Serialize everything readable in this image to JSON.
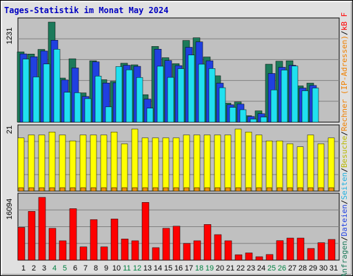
{
  "chart_data": [
    {
      "type": "bar",
      "panel": "top",
      "title": "Tages-Statistik im Monat May 2024",
      "ymax_label": "1231",
      "ylim": [
        0,
        1231
      ],
      "categories": [
        "1",
        "2",
        "3",
        "4",
        "5",
        "6",
        "7",
        "8",
        "9",
        "10",
        "11",
        "12",
        "13",
        "14",
        "15",
        "16",
        "17",
        "18",
        "19",
        "20",
        "21",
        "22",
        "23",
        "24",
        "25",
        "26",
        "27",
        "28",
        "29",
        "30",
        "31"
      ],
      "weekend_days": [
        "4",
        "5",
        "11",
        "12",
        "18",
        "19",
        "25",
        "26"
      ],
      "series": [
        {
          "name": "Anfragen",
          "color": "#1c7a5a",
          "values": [
            865,
            838,
            895,
            1231,
            543,
            780,
            360,
            755,
            522,
            502,
            725,
            705,
            338,
            932,
            793,
            720,
            1005,
            1038,
            802,
            570,
            234,
            249,
            79,
            139,
            713,
            750,
            755,
            446,
            480,
            0,
            0
          ]
        },
        {
          "name": "Dateien",
          "color": "#2040e0",
          "values": [
            840,
            805,
            875,
            1008,
            519,
            667,
            316,
            742,
            482,
            484,
            700,
            687,
            284,
            898,
            758,
            696,
            921,
            988,
            755,
            480,
            214,
            222,
            70,
            104,
            599,
            675,
            700,
            420,
            451,
            0,
            0
          ]
        },
        {
          "name": "Seiten",
          "color": "#20e0f0",
          "values": [
            776,
            556,
            715,
            897,
            368,
            362,
            289,
            567,
            188,
            684,
            644,
            550,
            172,
            688,
            551,
            658,
            826,
            713,
            660,
            424,
            182,
            153,
            38,
            63,
            397,
            641,
            690,
            386,
            420,
            0,
            0
          ]
        }
      ]
    },
    {
      "type": "bar",
      "panel": "middle",
      "ymax_label": "21",
      "ylim": [
        0,
        21
      ],
      "categories": [
        "1",
        "2",
        "3",
        "4",
        "5",
        "6",
        "7",
        "8",
        "9",
        "10",
        "11",
        "12",
        "13",
        "14",
        "15",
        "16",
        "17",
        "18",
        "19",
        "20",
        "21",
        "22",
        "23",
        "24",
        "25",
        "26",
        "27",
        "28",
        "29",
        "30",
        "31"
      ],
      "series": [
        {
          "name": "Besuche",
          "color": "#ffff00",
          "values": [
            18,
            19,
            19,
            20,
            19,
            17,
            19,
            19,
            19,
            20,
            16,
            21,
            18,
            18,
            18,
            18,
            19,
            19,
            19,
            19,
            19,
            21,
            20,
            19,
            17,
            17,
            16,
            15,
            19,
            16,
            18
          ]
        },
        {
          "name": "Rechner (IP-Adressen)",
          "color": "#f09010",
          "values": [
            1,
            1,
            1,
            1,
            1,
            1,
            1,
            1,
            1,
            1,
            1,
            1,
            1,
            1,
            1,
            1,
            1,
            1,
            1,
            1,
            1,
            1,
            1,
            1,
            1,
            1,
            1,
            1,
            1,
            1,
            1
          ]
        }
      ]
    },
    {
      "type": "bar",
      "panel": "bottom",
      "ymax_label": "16094",
      "ylim": [
        0,
        16094
      ],
      "categories": [
        "1",
        "2",
        "3",
        "4",
        "5",
        "6",
        "7",
        "8",
        "9",
        "10",
        "11",
        "12",
        "13",
        "14",
        "15",
        "16",
        "17",
        "18",
        "19",
        "20",
        "21",
        "22",
        "23",
        "24",
        "25",
        "26",
        "27",
        "28",
        "29",
        "30",
        "31"
      ],
      "series": [
        {
          "name": "kB F",
          "color": "#ff0000",
          "values": [
            8400,
            12500,
            16094,
            8160,
            4964,
            13200,
            3400,
            10400,
            3400,
            10560,
            5430,
            4964,
            14800,
            3200,
            8160,
            8700,
            4290,
            4964,
            9150,
            6540,
            4964,
            1390,
            1850,
            880,
            1440,
            5000,
            5660,
            5660,
            3000,
            4480,
            5310
          ]
        }
      ]
    }
  ],
  "legend_right": [
    {
      "text": "Anfragen",
      "color": "#1c7a5a"
    },
    {
      "text": "/",
      "color": "#000000"
    },
    {
      "text": "Dateien",
      "color": "#2040e0"
    },
    {
      "text": "/",
      "color": "#000000"
    },
    {
      "text": "Seiten",
      "color": "#20b0e0"
    },
    {
      "text": "/",
      "color": "#000000"
    },
    {
      "text": "Besuche",
      "color": "#b8b800"
    },
    {
      "text": "/",
      "color": "#000000"
    },
    {
      "text": "Rechner (IP-Adressen)",
      "color": "#f08000"
    },
    {
      "text": "/",
      "color": "#000000"
    },
    {
      "text": "kB F",
      "color": "#ff0000"
    }
  ],
  "colors": {
    "title": "#0000c0",
    "weekend_label": "#008040",
    "weekday_label": "#000000",
    "panel_bg": "#c0c0c0",
    "frame_bg": "#e0e0e0"
  }
}
